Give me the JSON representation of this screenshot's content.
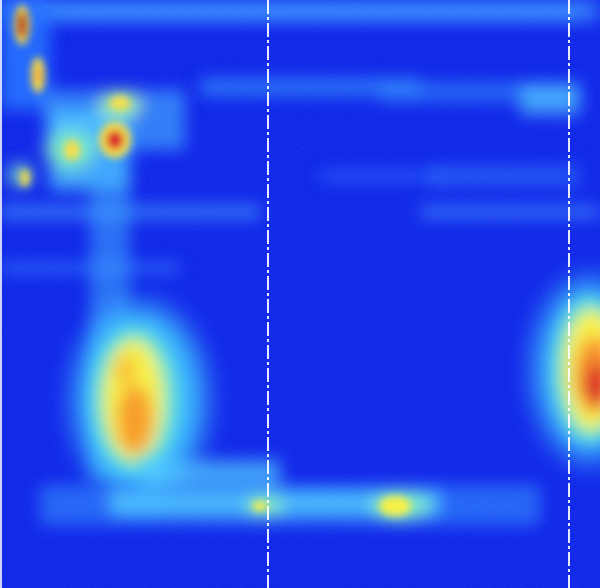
{
  "image": {
    "kind": "false-color heatmap / spectrogram",
    "colormap": [
      "#0a1ee8",
      "#1e6cff",
      "#3fd0ff",
      "#7ff0c0",
      "#fff23a",
      "#ff8a1a",
      "#e0101a",
      "#7a0010"
    ],
    "background_color": "#0a1ee8",
    "marker_line_color": "#ffffff",
    "marker_line_count": 2,
    "notes_visible_text": []
  }
}
